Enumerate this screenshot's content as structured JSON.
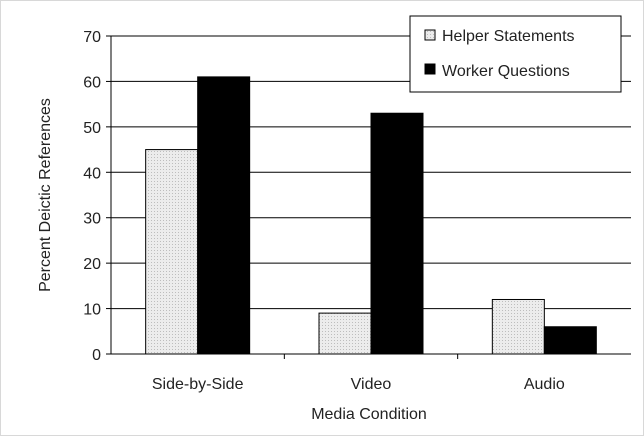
{
  "chart_data": {
    "type": "bar",
    "title": "",
    "xlabel": "Media Condition",
    "ylabel": "Percent Deictic References",
    "categories": [
      "Side-by-Side",
      "Video",
      "Audio"
    ],
    "series": [
      {
        "name": "Helper Statements",
        "values": [
          45,
          9,
          12
        ],
        "color": "#e8e8e8",
        "pattern": "dotted-light"
      },
      {
        "name": "Worker Questions",
        "values": [
          61,
          53,
          6
        ],
        "color": "#000000",
        "pattern": "solid"
      }
    ],
    "ylim": [
      0,
      70
    ],
    "yticks": [
      0,
      10,
      20,
      30,
      40,
      50,
      60,
      70
    ],
    "grid": true,
    "legend_position": "top-right"
  }
}
